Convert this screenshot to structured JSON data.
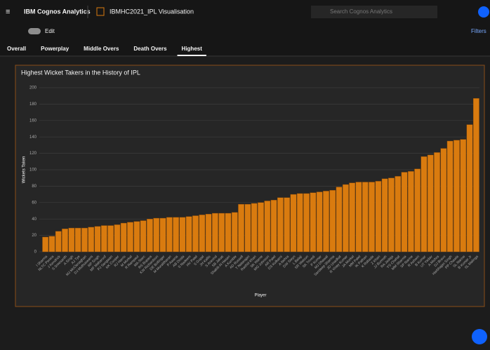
{
  "ui": {
    "brand": "IBM Cognos Analytics",
    "report": "IBMHC2021_IPL Visualisation",
    "search": "Search Cognos Analytics",
    "edit": "Edit",
    "filters": "Filters",
    "tabs": [
      "Overall",
      "Powerplay",
      "Middle Overs",
      "Death Overs",
      "Highest"
    ]
  },
  "chart_data": {
    "type": "bar",
    "title": "Highest Wicket Takers in the History of IPL",
    "x_label": "Player",
    "y_label": "Wickets Taken",
    "color": "#d97b0f",
    "grid": true,
    "ylim": [
      0,
      200
    ],
    "yticks": [
      0,
      20,
      40,
      60,
      80,
      100,
      120,
      140,
      160,
      180,
      200
    ],
    "categories": [
      "I Sharma",
      "NLTC Perera",
      "J Kendrick",
      "S Sreesanth",
      "A Singh",
      "AJ Tye",
      "MJ McClenaghan",
      "DJ Muthuswami",
      "RP Singh",
      "MF Maharoof",
      "PJ Sangwan",
      "KK Cooper",
      "RJ Harris",
      "M Morkel",
      "R Rampaul",
      "MA Starc",
      "RS Bopara",
      "KW Richardson",
      "DE Bollinger",
      "M Muralitharan",
      "P Awana",
      "AB Dinda",
      "S Nadeem",
      "HV Patel",
      "S Gopal",
      "JH Kallis",
      "S Aravind",
      "SB Jakati",
      "Shakib Al Hasan",
      "A Kumble",
      "AD Russell",
      "T Natarajan",
      "Rashid Khan",
      "SK Warne",
      "MG Johnson",
      "AR Patel",
      "DS Kulkarni",
      "A Nehra",
      "DW Steyn",
      "L Balaji",
      "SR Watson",
      "SK Trivedi",
      "P Kumar",
      "MJ Dhawal",
      "Sandeep Sharma",
      "JD Unadkat",
      "R Vinay Kumar",
      "JA Morkel",
      "MM Patel",
      "IK Pathan",
      "K Rabada",
      "Z Khan",
      "JJ Bumrah",
      "RA Jadeja",
      "YS Chahal",
      "MM Sharma",
      "SP Narine",
      "R Ashwin",
      "B Kumar",
      "UT Yadav",
      "A Mishra",
      "DJ Bravo",
      "Harbhajan Singh",
      "PP Chawla",
      "SL Narine",
      "B Kumar Jr",
      "SL Malinga"
    ],
    "values": [
      18,
      19,
      25,
      28,
      29,
      29,
      29,
      30,
      31,
      32,
      32,
      33,
      35,
      36,
      37,
      38,
      40,
      41,
      41,
      42,
      42,
      42,
      43,
      44,
      45,
      46,
      47,
      47,
      47,
      48,
      58,
      58,
      59,
      60,
      62,
      63,
      66,
      66,
      70,
      71,
      71,
      72,
      73,
      74,
      75,
      79,
      82,
      84,
      85,
      85,
      85,
      86,
      89,
      90,
      92,
      97,
      98,
      101,
      116,
      118,
      121,
      126,
      135,
      136,
      137,
      155,
      187
    ]
  }
}
